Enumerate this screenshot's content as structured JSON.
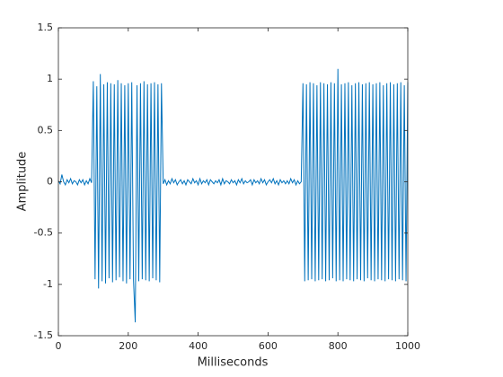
{
  "chart_data": {
    "type": "line",
    "xlabel": "Milliseconds",
    "ylabel": "Amplitude",
    "color": "#0072bd",
    "xlim": [
      0,
      1000
    ],
    "ylim": [
      -1.5,
      1.5
    ],
    "xticks": [
      0,
      200,
      400,
      600,
      800,
      1000
    ],
    "yticks": [
      -1.5,
      -1,
      -0.5,
      0,
      0.5,
      1,
      1.5
    ],
    "x": [
      0,
      5,
      10,
      15,
      20,
      25,
      30,
      35,
      40,
      45,
      50,
      55,
      60,
      65,
      70,
      75,
      80,
      85,
      90,
      95,
      100,
      105,
      110,
      115,
      120,
      125,
      130,
      135,
      140,
      145,
      150,
      155,
      160,
      165,
      170,
      175,
      180,
      185,
      190,
      195,
      200,
      205,
      210,
      215,
      220,
      225,
      230,
      235,
      240,
      245,
      250,
      255,
      260,
      265,
      270,
      275,
      280,
      285,
      290,
      295,
      300,
      305,
      310,
      315,
      320,
      325,
      330,
      335,
      340,
      345,
      350,
      355,
      360,
      365,
      370,
      375,
      380,
      385,
      390,
      395,
      400,
      405,
      410,
      415,
      420,
      425,
      430,
      435,
      440,
      445,
      450,
      455,
      460,
      465,
      470,
      475,
      480,
      485,
      490,
      495,
      500,
      505,
      510,
      515,
      520,
      525,
      530,
      535,
      540,
      545,
      550,
      555,
      560,
      565,
      570,
      575,
      580,
      585,
      590,
      595,
      600,
      605,
      610,
      615,
      620,
      625,
      630,
      635,
      640,
      645,
      650,
      655,
      660,
      665,
      670,
      675,
      680,
      685,
      690,
      695,
      700,
      705,
      710,
      715,
      720,
      725,
      730,
      735,
      740,
      745,
      750,
      755,
      760,
      765,
      770,
      775,
      780,
      785,
      790,
      795,
      800,
      805,
      810,
      815,
      820,
      825,
      830,
      835,
      840,
      845,
      850,
      855,
      860,
      865,
      870,
      875,
      880,
      885,
      890,
      895,
      900,
      905,
      910,
      915,
      920,
      925,
      930,
      935,
      940,
      945,
      950,
      955,
      960,
      965,
      970,
      975,
      980,
      985,
      990,
      995,
      1000
    ],
    "values": [
      0.01,
      -0.02,
      0.07,
      0.0,
      -0.03,
      0.02,
      -0.01,
      0.03,
      -0.02,
      0.01,
      0.0,
      -0.03,
      0.02,
      -0.01,
      0.02,
      -0.03,
      0.01,
      -0.02,
      0.03,
      -0.01,
      0.98,
      -0.95,
      0.93,
      -1.04,
      1.05,
      -0.97,
      0.95,
      -0.99,
      0.97,
      -0.94,
      0.96,
      -0.98,
      0.95,
      -0.96,
      0.99,
      -0.93,
      0.96,
      -0.97,
      0.94,
      -0.99,
      0.96,
      -0.95,
      0.97,
      -0.96,
      -1.37,
      0.94,
      -0.97,
      0.96,
      -0.95,
      0.98,
      -0.96,
      0.95,
      -0.97,
      0.96,
      -0.94,
      0.97,
      -0.96,
      0.95,
      -0.98,
      0.96,
      -0.02,
      0.02,
      -0.03,
      0.01,
      -0.02,
      0.03,
      -0.01,
      0.02,
      -0.03,
      0.0,
      0.02,
      -0.02,
      0.01,
      -0.03,
      0.02,
      0.0,
      -0.02,
      0.03,
      -0.01,
      0.01,
      -0.03,
      0.03,
      -0.02,
      0.01,
      -0.01,
      0.02,
      -0.03,
      0.02,
      0.0,
      -0.02,
      0.01,
      -0.01,
      0.02,
      -0.03,
      0.03,
      -0.02,
      0.01,
      0.0,
      -0.02,
      0.02,
      -0.01,
      0.01,
      -0.03,
      0.02,
      -0.01,
      0.03,
      -0.02,
      0.01,
      -0.01,
      0.0,
      0.02,
      -0.03,
      0.02,
      -0.01,
      0.01,
      -0.02,
      0.03,
      -0.01,
      0.02,
      -0.03,
      0.0,
      0.02,
      -0.01,
      0.03,
      -0.02,
      0.01,
      -0.03,
      0.02,
      -0.01,
      0.01,
      -0.02,
      0.01,
      -0.02,
      0.03,
      -0.01,
      0.02,
      -0.03,
      0.01,
      -0.02,
      0.0,
      0.96,
      -0.97,
      0.95,
      -0.96,
      0.97,
      -0.95,
      0.96,
      -0.97,
      0.94,
      -0.96,
      0.97,
      -0.95,
      0.96,
      -0.97,
      0.95,
      -0.96,
      0.97,
      -0.94,
      0.96,
      -0.97,
      1.1,
      -0.96,
      0.95,
      -0.97,
      0.96,
      -0.95,
      0.97,
      -0.96,
      0.94,
      -0.97,
      0.96,
      -0.95,
      0.97,
      -0.96,
      0.95,
      -0.97,
      0.96,
      -0.94,
      0.97,
      -0.96,
      0.95,
      -0.97,
      0.96,
      -0.95,
      0.97,
      -0.96,
      0.94,
      -0.97,
      0.96,
      -0.95,
      0.97,
      -0.96,
      0.95,
      -0.97,
      0.96,
      -0.95,
      0.97,
      -0.96,
      0.94,
      -0.97,
      0.97
    ]
  }
}
